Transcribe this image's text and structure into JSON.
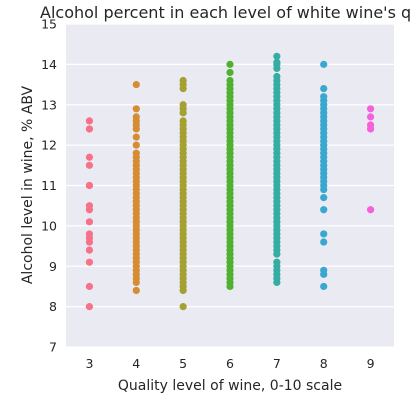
{
  "chart_data": {
    "type": "scatter",
    "title": "Alcohol percent in each level of white wine's quality",
    "xlabel": "Quality level of wine, 0-10 scale",
    "ylabel": "Alcohol level in wine, % ABV",
    "categories": [
      "3",
      "4",
      "5",
      "6",
      "7",
      "8",
      "9"
    ],
    "ylim": [
      7,
      15
    ],
    "yticks": [
      7,
      8,
      9,
      10,
      11,
      12,
      13,
      14,
      15
    ],
    "grid": true,
    "background": "#EAEAF2",
    "series": [
      {
        "category": "3",
        "color": "#F77189",
        "values": [
          8.0,
          8.5,
          9.1,
          9.4,
          9.6,
          9.7,
          9.8,
          10.1,
          10.4,
          10.5,
          11.0,
          11.0,
          11.5,
          11.7,
          12.4,
          12.6
        ]
      },
      {
        "category": "4",
        "color": "#D58C32",
        "values": [
          8.4,
          8.6,
          8.7,
          8.8,
          8.9,
          9.0,
          9.1,
          9.2,
          9.3,
          9.4,
          9.5,
          9.6,
          9.7,
          9.8,
          9.9,
          10.0,
          10.1,
          10.2,
          10.3,
          10.4,
          10.5,
          10.6,
          10.7,
          10.8,
          10.9,
          11.0,
          11.1,
          11.2,
          11.3,
          11.4,
          11.5,
          11.6,
          11.7,
          11.8,
          12.0,
          12.2,
          12.4,
          12.5,
          12.6,
          12.7,
          12.9,
          13.5
        ]
      },
      {
        "category": "5",
        "color": "#A4A031",
        "values": [
          8.0,
          8.4,
          8.5,
          8.6,
          8.7,
          8.8,
          8.9,
          9.0,
          9.1,
          9.2,
          9.3,
          9.4,
          9.5,
          9.6,
          9.7,
          9.8,
          9.9,
          10.0,
          10.1,
          10.2,
          10.3,
          10.4,
          10.5,
          10.6,
          10.7,
          10.8,
          10.9,
          11.0,
          11.1,
          11.2,
          11.3,
          11.4,
          11.5,
          11.6,
          11.7,
          11.8,
          11.9,
          12.0,
          12.1,
          12.2,
          12.3,
          12.4,
          12.5,
          12.6,
          12.8,
          12.9,
          13.0,
          13.4,
          13.5,
          13.6
        ]
      },
      {
        "category": "6",
        "color": "#50B131",
        "values": [
          8.5,
          8.6,
          8.7,
          8.8,
          8.9,
          9.0,
          9.1,
          9.2,
          9.3,
          9.4,
          9.5,
          9.6,
          9.7,
          9.8,
          9.9,
          10.0,
          10.1,
          10.2,
          10.3,
          10.4,
          10.5,
          10.6,
          10.7,
          10.8,
          10.9,
          11.0,
          11.1,
          11.2,
          11.3,
          11.4,
          11.5,
          11.6,
          11.7,
          11.8,
          11.9,
          12.0,
          12.1,
          12.2,
          12.3,
          12.4,
          12.5,
          12.6,
          12.7,
          12.8,
          12.9,
          13.0,
          13.1,
          13.2,
          13.3,
          13.4,
          13.5,
          13.6,
          13.8,
          14.0
        ]
      },
      {
        "category": "7",
        "color": "#36ADA4",
        "values": [
          8.6,
          8.7,
          8.8,
          8.9,
          9.0,
          9.1,
          9.3,
          9.4,
          9.5,
          9.6,
          9.7,
          9.8,
          9.9,
          10.0,
          10.1,
          10.2,
          10.3,
          10.4,
          10.5,
          10.6,
          10.7,
          10.8,
          10.9,
          11.0,
          11.1,
          11.2,
          11.3,
          11.4,
          11.5,
          11.6,
          11.7,
          11.8,
          11.9,
          12.0,
          12.1,
          12.2,
          12.3,
          12.4,
          12.5,
          12.6,
          12.7,
          12.8,
          12.9,
          13.0,
          13.1,
          13.2,
          13.3,
          13.4,
          13.5,
          13.6,
          13.7,
          13.9,
          14.0,
          14.05,
          14.2
        ]
      },
      {
        "category": "8",
        "color": "#39A7D0",
        "values": [
          8.5,
          8.8,
          8.9,
          9.6,
          9.8,
          10.4,
          10.7,
          10.9,
          11.0,
          11.1,
          11.2,
          11.3,
          11.4,
          11.5,
          11.6,
          11.7,
          11.8,
          11.9,
          12.0,
          12.1,
          12.2,
          12.3,
          12.4,
          12.5,
          12.6,
          12.7,
          12.8,
          12.9,
          13.0,
          13.1,
          13.2,
          13.4,
          14.0
        ]
      },
      {
        "category": "9",
        "color": "#F461DD",
        "values": [
          10.4,
          12.4,
          12.5,
          12.7,
          12.9
        ]
      }
    ]
  }
}
